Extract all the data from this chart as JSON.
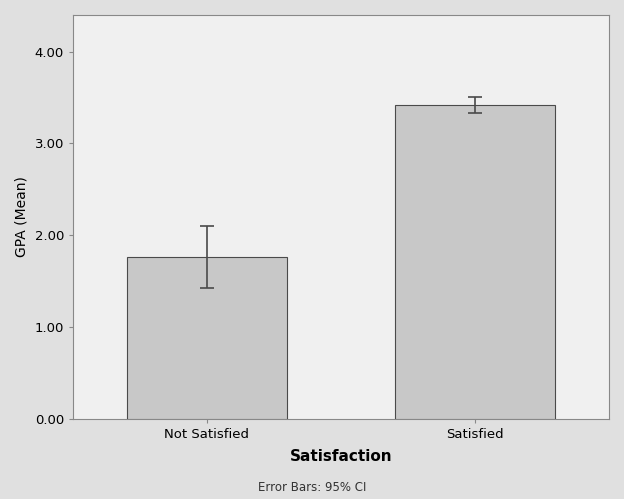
{
  "categories": [
    "Not Satisfied",
    "Satisfied"
  ],
  "values": [
    1.76,
    3.42
  ],
  "errors": [
    0.34,
    0.09
  ],
  "bar_color": "#c8c8c8",
  "bar_edgecolor": "#4a4a4a",
  "error_color": "#4a4a4a",
  "figure_background_color": "#e0e0e0",
  "plot_background_color": "#f0f0f0",
  "ylabel": "GPA (Mean)",
  "xlabel": "Satisfaction",
  "xlabel_fontsize": 11,
  "xlabel_fontweight": "bold",
  "ylabel_fontsize": 10,
  "ylabel_fontweight": "normal",
  "tick_label_fontsize": 9.5,
  "ylim": [
    0,
    4.4
  ],
  "yticks": [
    0.0,
    1.0,
    2.0,
    3.0,
    4.0
  ],
  "ytick_labels": [
    "0.00",
    "1.00",
    "2.00",
    "3.00",
    "4.00"
  ],
  "footnote": "Error Bars: 95% CI",
  "footnote_fontsize": 8.5,
  "bar_width": 0.6,
  "capsize": 5,
  "error_linewidth": 1.2,
  "spine_color": "#888888",
  "xlim": [
    -0.5,
    1.5
  ]
}
